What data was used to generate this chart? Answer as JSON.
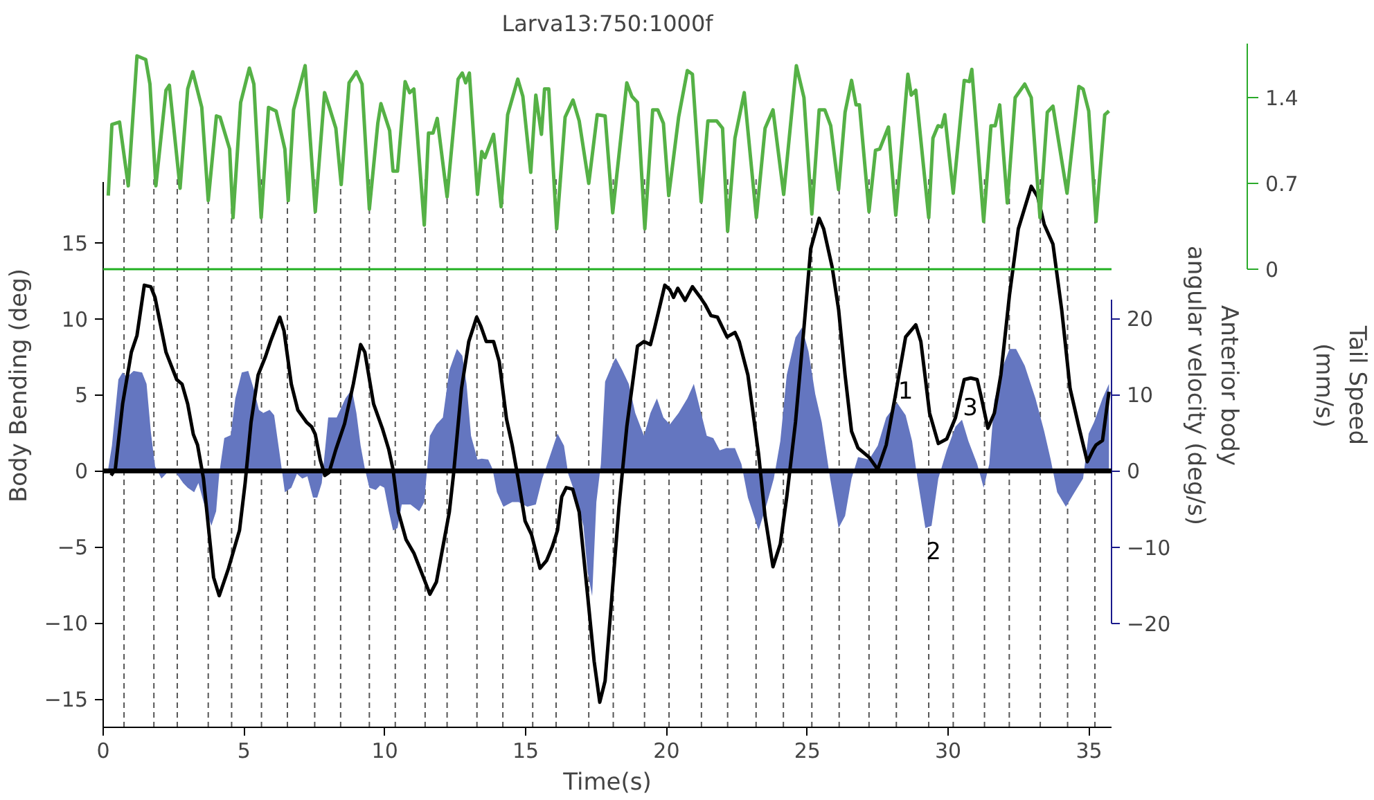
{
  "chart_data": {
    "type": "line",
    "title": "Larva13:750:1000f",
    "xlabel": "Time(s)",
    "ylabel": "Body Bending (deg)",
    "y2label": "Anterior body\nangular velocity (deg/s)",
    "y3label": "Tail Speed\n(mm/s)",
    "xlim": [
      0,
      35.8
    ],
    "xticks": [
      0,
      5,
      10,
      15,
      20,
      25,
      30,
      35
    ],
    "ylim": [
      -16.85,
      19
    ],
    "yticks": [
      -15,
      -10,
      -5,
      0,
      5,
      10,
      15
    ],
    "y2lim": [
      -20,
      22.5
    ],
    "y2ticks": [
      -20,
      -10,
      0,
      10,
      20
    ],
    "y3lim": [
      0,
      1.84
    ],
    "y3ticks": [
      0,
      0.7,
      1.4
    ],
    "grid": false,
    "series": [
      {
        "type": "area",
        "axis": "y2",
        "color": "#6476c0",
        "x": [
          0.18,
          0.31,
          0.54,
          0.69,
          0.84,
          1.08,
          1.38,
          1.54,
          1.69,
          1.84,
          2.07,
          2.23,
          2.38,
          2.61,
          2.84,
          3.0,
          3.23,
          3.38,
          3.61,
          3.84,
          4.01,
          4.12,
          4.3,
          4.53,
          4.69,
          4.92,
          5.15,
          5.35,
          5.53,
          5.68,
          5.91,
          6.07,
          6.27,
          6.45,
          6.68,
          6.88,
          7.07,
          7.25,
          7.45,
          7.6,
          7.76,
          7.99,
          8.29,
          8.6,
          8.83,
          8.99,
          9.14,
          9.29,
          9.45,
          9.68,
          9.83,
          9.98,
          10.14,
          10.29,
          10.45,
          10.6,
          10.91,
          11.22,
          11.4,
          11.6,
          11.83,
          12.06,
          12.29,
          12.56,
          12.75,
          12.9,
          13.06,
          13.29,
          13.44,
          13.67,
          13.82,
          13.98,
          14.21,
          14.52,
          14.75,
          15.06,
          15.36,
          15.59,
          15.82,
          16.13,
          16.36,
          16.51,
          16.74,
          17.05,
          17.2,
          17.36,
          17.51,
          17.67,
          17.82,
          18.13,
          18.2,
          18.43,
          18.66,
          18.89,
          19.2,
          19.43,
          19.66,
          19.89,
          20.12,
          20.43,
          20.74,
          20.97,
          21.2,
          21.43,
          21.66,
          21.89,
          22.12,
          22.43,
          22.66,
          22.89,
          23.27,
          23.58,
          23.81,
          24.04,
          24.27,
          24.58,
          24.81,
          25.04,
          25.28,
          25.51,
          25.81,
          26.11,
          26.34,
          26.57,
          26.8,
          27.19,
          27.5,
          27.8,
          28.19,
          28.49,
          28.72,
          28.91,
          29.19,
          29.41,
          29.65,
          29.95,
          30.26,
          30.49,
          30.72,
          31.03,
          31.26,
          31.46,
          31.64,
          31.95,
          32.18,
          32.41,
          32.72,
          33.1,
          33.41,
          33.64,
          33.87,
          34.18,
          34.49,
          34.79,
          34.99,
          35.18,
          35.48,
          35.71
        ],
        "values": [
          0.3,
          3.3,
          12.0,
          12.9,
          12.3,
          13.1,
          12.9,
          11.4,
          5.2,
          0.6,
          -1.0,
          -0.4,
          0.3,
          -0.4,
          -1.6,
          -2.2,
          -2.8,
          -1.6,
          -4.7,
          -7.2,
          -5.3,
          -0.4,
          4.3,
          4.7,
          9.5,
          12.9,
          13.1,
          10.7,
          8.0,
          7.6,
          8.0,
          7.3,
          2.1,
          -2.8,
          -2.2,
          -0.4,
          -1.0,
          -0.7,
          -3.5,
          -3.5,
          -1.6,
          7.0,
          7.0,
          9.5,
          10.7,
          7.6,
          3.3,
          0.3,
          -2.2,
          -2.5,
          -1.9,
          -2.2,
          -5.3,
          -7.8,
          -7.5,
          -4.4,
          -4.4,
          -5.3,
          -4.1,
          4.6,
          6.1,
          7.0,
          13.2,
          16.0,
          15.1,
          11.4,
          4.6,
          1.5,
          1.6,
          1.5,
          0.3,
          -2.8,
          -4.7,
          -4.1,
          -4.1,
          -4.7,
          -4.4,
          -1.0,
          1.5,
          4.9,
          3.3,
          -0.4,
          -2.8,
          -7.2,
          -13.3,
          -16.4,
          -4.1,
          0.9,
          11.7,
          14.4,
          14.8,
          13.2,
          11.4,
          7.6,
          4.6,
          7.6,
          9.5,
          7.0,
          6.1,
          7.6,
          9.5,
          11.4,
          8.0,
          4.6,
          4.3,
          2.7,
          3.0,
          3.0,
          0.9,
          -3.5,
          -7.8,
          -4.1,
          -1.0,
          3.9,
          12.6,
          17.5,
          18.8,
          15.7,
          10.1,
          6.4,
          -1.0,
          -7.5,
          -5.9,
          -1.0,
          1.8,
          1.5,
          3.3,
          7.0,
          8.9,
          7.3,
          3.9,
          -1.0,
          -7.5,
          -7.2,
          -1.0,
          2.7,
          5.8,
          6.7,
          3.9,
          0.9,
          -2.2,
          0.9,
          9.2,
          13.8,
          16.0,
          16.0,
          13.8,
          9.5,
          5.2,
          1.5,
          -2.8,
          -4.7,
          -2.8,
          -1.0,
          4.9,
          6.4,
          9.5,
          11.4
        ]
      },
      {
        "axis": "y",
        "color": "#000000",
        "x": [
          0.28,
          0.43,
          0.69,
          1.0,
          1.2,
          1.46,
          1.69,
          1.84,
          2.23,
          2.61,
          2.8,
          3.0,
          3.2,
          3.35,
          3.56,
          3.92,
          4.12,
          4.45,
          4.84,
          5.04,
          5.25,
          5.5,
          5.76,
          5.96,
          6.27,
          6.42,
          6.68,
          6.91,
          7.22,
          7.4,
          7.53,
          7.71,
          7.87,
          8.02,
          8.26,
          8.57,
          8.88,
          9.14,
          9.29,
          9.6,
          9.91,
          10.14,
          10.29,
          10.48,
          10.75,
          11.03,
          11.37,
          11.6,
          11.83,
          12.14,
          12.29,
          12.44,
          12.72,
          12.98,
          13.26,
          13.41,
          13.6,
          13.86,
          14.06,
          14.32,
          14.52,
          14.75,
          14.98,
          15.21,
          15.51,
          15.74,
          15.94,
          16.13,
          16.28,
          16.44,
          16.67,
          16.9,
          17.2,
          17.43,
          17.63,
          17.82,
          18.05,
          18.31,
          18.59,
          18.97,
          19.2,
          19.43,
          19.58,
          19.94,
          20.12,
          20.25,
          20.4,
          20.66,
          20.92,
          21.2,
          21.38,
          21.58,
          21.81,
          22.15,
          22.43,
          22.58,
          22.89,
          23.27,
          23.5,
          23.78,
          24.04,
          24.27,
          24.58,
          24.88,
          25.12,
          25.42,
          25.58,
          25.88,
          26.11,
          26.34,
          26.57,
          26.8,
          27.19,
          27.5,
          27.8,
          28.11,
          28.49,
          28.85,
          29.03,
          29.34,
          29.65,
          29.95,
          30.26,
          30.57,
          30.8,
          31.03,
          31.18,
          31.41,
          31.64,
          31.87,
          32.18,
          32.49,
          32.95,
          33.18,
          33.41,
          33.72,
          34.03,
          34.33,
          34.64,
          34.94,
          35.15,
          35.25,
          35.48,
          35.71
        ],
        "values": [
          -0.3,
          0.1,
          4.4,
          7.8,
          8.9,
          12.2,
          12.1,
          11.4,
          7.8,
          6.0,
          5.7,
          4.4,
          2.4,
          1.7,
          -0.5,
          -7.0,
          -8.2,
          -6.4,
          -3.9,
          -0.8,
          3.2,
          6.3,
          7.5,
          8.6,
          10.1,
          9.2,
          5.7,
          4.0,
          3.2,
          2.9,
          2.4,
          0.7,
          -0.3,
          -0.1,
          1.4,
          3.1,
          5.7,
          8.3,
          7.8,
          4.4,
          2.8,
          1.4,
          0.1,
          -2.7,
          -4.5,
          -5.4,
          -7.0,
          -8.1,
          -7.3,
          -4.2,
          -2.7,
          -0.2,
          5.4,
          8.5,
          10.1,
          9.5,
          8.5,
          8.5,
          7.2,
          3.4,
          1.7,
          -0.7,
          -3.3,
          -4.2,
          -6.4,
          -5.9,
          -5.0,
          -3.9,
          -1.7,
          -1.1,
          -1.2,
          -2.7,
          -8.2,
          -12.5,
          -15.2,
          -13.8,
          -8.5,
          -2.4,
          2.9,
          8.2,
          8.5,
          8.3,
          9.4,
          12.2,
          11.9,
          11.4,
          12.0,
          11.2,
          12.1,
          11.4,
          10.9,
          10.2,
          10.1,
          8.8,
          9.1,
          8.5,
          6.3,
          1.1,
          -3.0,
          -6.3,
          -4.8,
          -1.7,
          3.2,
          9.4,
          14.6,
          16.6,
          15.9,
          13.4,
          10.6,
          6.3,
          2.6,
          1.5,
          0.9,
          0.1,
          1.7,
          4.8,
          8.8,
          9.6,
          8.5,
          3.8,
          1.8,
          2.1,
          3.5,
          6.0,
          6.1,
          6.0,
          4.8,
          2.8,
          3.8,
          6.3,
          11.6,
          15.9,
          18.7,
          18.0,
          16.2,
          14.9,
          10.6,
          5.4,
          2.9,
          0.6,
          1.4,
          1.7,
          2.0,
          5.2
        ]
      },
      {
        "type": "line",
        "axis": "y3",
        "color": "#55b146",
        "x": [
          0.18,
          0.31,
          0.58,
          0.89,
          1.2,
          1.51,
          1.66,
          1.87,
          2.23,
          2.35,
          2.73,
          3.0,
          3.18,
          3.5,
          3.73,
          4.02,
          4.15,
          4.49,
          4.61,
          4.88,
          5.19,
          5.35,
          5.61,
          5.87,
          6.14,
          6.45,
          6.57,
          6.76,
          7.17,
          7.53,
          7.86,
          8.03,
          8.26,
          8.45,
          8.73,
          8.99,
          9.19,
          9.45,
          9.75,
          9.86,
          10.17,
          10.29,
          10.45,
          10.72,
          10.88,
          11.03,
          11.4,
          11.55,
          11.71,
          11.86,
          12.21,
          12.6,
          12.75,
          12.87,
          13.0,
          13.29,
          13.44,
          13.55,
          13.86,
          14.13,
          14.36,
          14.72,
          14.9,
          15.18,
          15.36,
          15.56,
          15.67,
          15.82,
          16.1,
          16.4,
          16.68,
          16.9,
          17.24,
          17.54,
          17.82,
          18.09,
          18.59,
          18.77,
          18.97,
          19.23,
          19.51,
          19.69,
          19.89,
          20.08,
          20.43,
          20.74,
          20.92,
          21.23,
          21.47,
          21.78,
          21.99,
          22.17,
          22.43,
          22.76,
          23.19,
          23.5,
          23.78,
          24.16,
          24.61,
          24.88,
          25.16,
          25.42,
          25.62,
          25.83,
          26.11,
          26.34,
          26.57,
          26.73,
          26.85,
          27.19,
          27.42,
          27.57,
          27.88,
          28.14,
          28.57,
          28.69,
          28.85,
          29.31,
          29.46,
          29.64,
          29.77,
          29.88,
          30.18,
          30.57,
          30.75,
          30.84,
          31.26,
          31.52,
          31.67,
          31.83,
          32.1,
          32.38,
          32.72,
          32.95,
          33.26,
          33.52,
          33.72,
          34.22,
          34.64,
          34.79,
          34.99,
          35.25,
          35.56,
          35.71
        ],
        "values": [
          0.6,
          1.18,
          1.2,
          0.68,
          1.74,
          1.71,
          1.51,
          0.68,
          1.46,
          1.5,
          0.66,
          1.47,
          1.61,
          1.32,
          0.56,
          1.25,
          1.24,
          0.98,
          0.42,
          1.36,
          1.64,
          1.51,
          0.42,
          1.32,
          1.29,
          0.98,
          0.56,
          1.3,
          1.66,
          0.47,
          1.44,
          1.32,
          1.15,
          0.69,
          1.52,
          1.61,
          1.51,
          0.49,
          1.19,
          1.35,
          1.13,
          0.8,
          0.8,
          1.53,
          1.44,
          1.47,
          0.36,
          1.11,
          1.11,
          1.23,
          0.59,
          1.55,
          1.6,
          1.52,
          1.6,
          0.61,
          0.96,
          0.91,
          1.1,
          0.51,
          1.26,
          1.55,
          1.41,
          0.79,
          1.42,
          1.1,
          1.47,
          1.47,
          0.33,
          1.24,
          1.38,
          1.21,
          0.7,
          1.26,
          1.25,
          0.46,
          1.52,
          1.41,
          1.36,
          0.33,
          1.3,
          1.3,
          1.19,
          0.6,
          1.24,
          1.62,
          1.59,
          0.55,
          1.21,
          1.21,
          1.15,
          0.31,
          1.07,
          1.44,
          0.42,
          1.15,
          1.3,
          0.61,
          1.66,
          1.4,
          0.45,
          1.3,
          1.3,
          1.17,
          0.65,
          1.28,
          1.54,
          1.34,
          1.34,
          0.47,
          0.97,
          0.98,
          1.16,
          0.44,
          1.59,
          1.42,
          1.46,
          0.42,
          1.07,
          1.17,
          1.16,
          1.26,
          0.62,
          1.54,
          1.53,
          1.63,
          0.39,
          1.17,
          1.17,
          1.34,
          0.54,
          1.4,
          1.51,
          1.4,
          0.42,
          1.28,
          1.33,
          0.62,
          1.49,
          1.47,
          1.29,
          0.39,
          1.26,
          1.29
        ]
      }
    ],
    "ref_lines": [
      {
        "axis": "y",
        "value": 0,
        "color": "#000000"
      },
      {
        "axis": "y3",
        "value": 0,
        "color": "#22b022"
      },
      {
        "axis": "x",
        "value": 0.74,
        "color": "#555555",
        "line_style": "dashed"
      },
      {
        "axis": "x",
        "value": 1.8,
        "color": "#555555",
        "line_style": "dashed"
      },
      {
        "axis": "x",
        "value": 2.63,
        "color": "#555555",
        "line_style": "dashed"
      },
      {
        "axis": "x",
        "value": 3.73,
        "color": "#555555",
        "line_style": "dashed"
      },
      {
        "axis": "x",
        "value": 4.56,
        "color": "#555555",
        "line_style": "dashed"
      },
      {
        "axis": "x",
        "value": 5.62,
        "color": "#555555",
        "line_style": "dashed"
      },
      {
        "axis": "x",
        "value": 6.54,
        "color": "#555555",
        "line_style": "dashed"
      },
      {
        "axis": "x",
        "value": 7.51,
        "color": "#555555",
        "line_style": "dashed"
      },
      {
        "axis": "x",
        "value": 8.43,
        "color": "#555555",
        "line_style": "dashed"
      },
      {
        "axis": "x",
        "value": 9.45,
        "color": "#555555",
        "line_style": "dashed"
      },
      {
        "axis": "x",
        "value": 10.37,
        "color": "#555555",
        "line_style": "dashed"
      },
      {
        "axis": "x",
        "value": 11.43,
        "color": "#555555",
        "line_style": "dashed"
      },
      {
        "axis": "x",
        "value": 12.21,
        "color": "#555555",
        "line_style": "dashed"
      },
      {
        "axis": "x",
        "value": 13.27,
        "color": "#555555",
        "line_style": "dashed"
      },
      {
        "axis": "x",
        "value": 14.19,
        "color": "#555555",
        "line_style": "dashed"
      },
      {
        "axis": "x",
        "value": 15.25,
        "color": "#555555",
        "line_style": "dashed"
      },
      {
        "axis": "x",
        "value": 16.08,
        "color": "#555555",
        "line_style": "dashed"
      },
      {
        "axis": "x",
        "value": 17.24,
        "color": "#555555",
        "line_style": "dashed"
      },
      {
        "axis": "x",
        "value": 18.11,
        "color": "#555555",
        "line_style": "dashed"
      },
      {
        "axis": "x",
        "value": 19.22,
        "color": "#555555",
        "line_style": "dashed"
      },
      {
        "axis": "x",
        "value": 20.09,
        "color": "#555555",
        "line_style": "dashed"
      },
      {
        "axis": "x",
        "value": 21.24,
        "color": "#555555",
        "line_style": "dashed"
      },
      {
        "axis": "x",
        "value": 22.17,
        "color": "#555555",
        "line_style": "dashed"
      },
      {
        "axis": "x",
        "value": 23.18,
        "color": "#555555",
        "line_style": "dashed"
      },
      {
        "axis": "x",
        "value": 24.15,
        "color": "#555555",
        "line_style": "dashed"
      },
      {
        "axis": "x",
        "value": 25.16,
        "color": "#555555",
        "line_style": "dashed"
      },
      {
        "axis": "x",
        "value": 26.13,
        "color": "#555555",
        "line_style": "dashed"
      },
      {
        "axis": "x",
        "value": 27.19,
        "color": "#555555",
        "line_style": "dashed"
      },
      {
        "axis": "x",
        "value": 28.16,
        "color": "#555555",
        "line_style": "dashed"
      },
      {
        "axis": "x",
        "value": 29.31,
        "color": "#555555",
        "line_style": "dashed"
      },
      {
        "axis": "x",
        "value": 30.18,
        "color": "#555555",
        "line_style": "dashed"
      },
      {
        "axis": "x",
        "value": 31.29,
        "color": "#555555",
        "line_style": "dashed"
      },
      {
        "axis": "x",
        "value": 32.17,
        "color": "#555555",
        "line_style": "dashed"
      },
      {
        "axis": "x",
        "value": 33.27,
        "color": "#555555",
        "line_style": "dashed"
      },
      {
        "axis": "x",
        "value": 34.24,
        "color": "#555555",
        "line_style": "dashed"
      },
      {
        "axis": "x",
        "value": 35.21,
        "color": "#555555",
        "line_style": "dashed"
      }
    ],
    "annotations": [
      {
        "text": "1",
        "x": 28.19,
        "y": 4.45
      },
      {
        "text": "2",
        "x": 29.19,
        "y": -3.75
      },
      {
        "text": "3",
        "x": 30.49,
        "y": 3.35
      }
    ]
  }
}
